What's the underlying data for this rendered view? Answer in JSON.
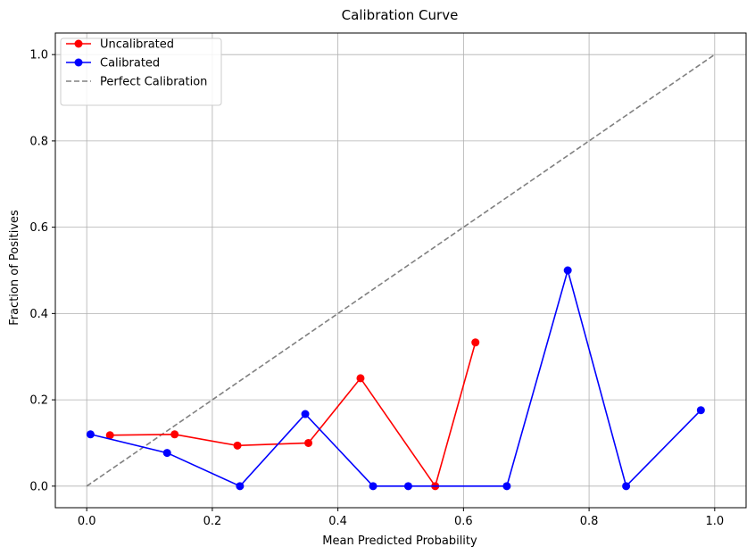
{
  "chart_data": {
    "type": "line",
    "title": "Calibration Curve",
    "xlabel": "Mean Predicted Probability",
    "ylabel": "Fraction of Positives",
    "xlim": [
      -0.05,
      1.05
    ],
    "ylim": [
      -0.05,
      1.05
    ],
    "xticks": [
      "0.0",
      "0.2",
      "0.4",
      "0.6",
      "0.8",
      "1.0"
    ],
    "yticks": [
      "0.0",
      "0.2",
      "0.4",
      "0.6",
      "0.8",
      "1.0"
    ],
    "grid": true,
    "legend_position": "top-left",
    "series": [
      {
        "name": "Uncalibrated",
        "color": "#ff0000",
        "style": "solid",
        "marker": "circle",
        "x": [
          0.037,
          0.14,
          0.24,
          0.353,
          0.436,
          0.555,
          0.619
        ],
        "y": [
          0.118,
          0.12,
          0.094,
          0.1,
          0.25,
          0.0,
          0.333
        ]
      },
      {
        "name": "Calibrated",
        "color": "#0000ff",
        "style": "solid",
        "marker": "circle",
        "x": [
          0.006,
          0.128,
          0.244,
          0.348,
          0.456,
          0.512,
          0.669,
          0.766,
          0.859,
          0.978
        ],
        "y": [
          0.12,
          0.077,
          0.0,
          0.167,
          0.0,
          0.0,
          0.0,
          0.5,
          0.0,
          0.176
        ]
      },
      {
        "name": "Perfect Calibration",
        "color": "#808080",
        "style": "dashed",
        "marker": "none",
        "x": [
          0,
          1
        ],
        "y": [
          0,
          1
        ]
      }
    ]
  }
}
